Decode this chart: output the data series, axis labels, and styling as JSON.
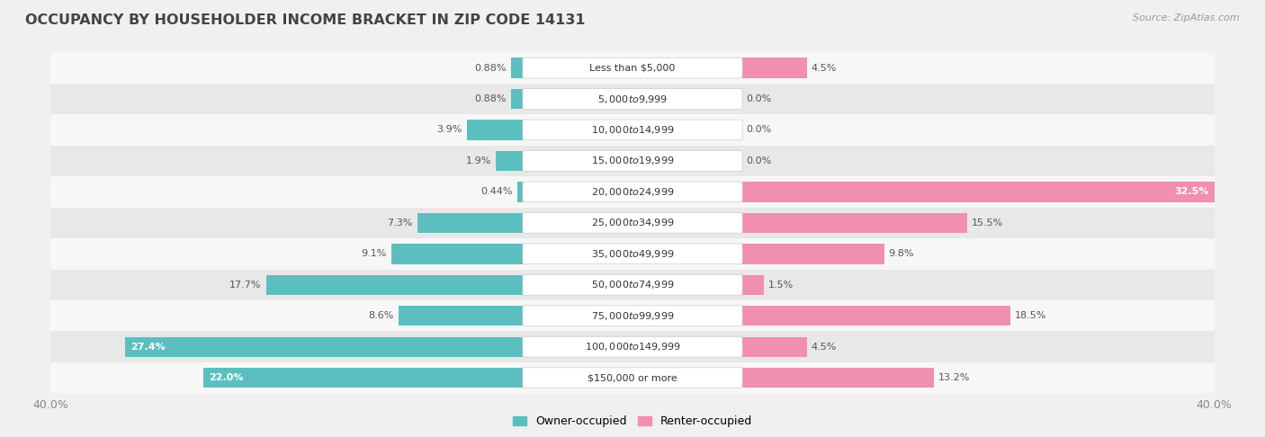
{
  "title": "OCCUPANCY BY HOUSEHOLDER INCOME BRACKET IN ZIP CODE 14131",
  "source": "Source: ZipAtlas.com",
  "categories": [
    "Less than $5,000",
    "$5,000 to $9,999",
    "$10,000 to $14,999",
    "$15,000 to $19,999",
    "$20,000 to $24,999",
    "$25,000 to $34,999",
    "$35,000 to $49,999",
    "$50,000 to $74,999",
    "$75,000 to $99,999",
    "$100,000 to $149,999",
    "$150,000 or more"
  ],
  "owner_values": [
    0.88,
    0.88,
    3.9,
    1.9,
    0.44,
    7.3,
    9.1,
    17.7,
    8.6,
    27.4,
    22.0
  ],
  "renter_values": [
    4.5,
    0.0,
    0.0,
    0.0,
    32.5,
    15.5,
    9.8,
    1.5,
    18.5,
    4.5,
    13.2
  ],
  "owner_color": "#5BBFBF",
  "renter_color": "#F08FB0",
  "owner_label": "Owner-occupied",
  "renter_label": "Renter-occupied",
  "axis_limit": 40.0,
  "bg_color": "#f0f0f0",
  "row_bg_even": "#f7f7f7",
  "row_bg_odd": "#e8e8e8",
  "title_fontsize": 11.5,
  "label_fontsize": 8,
  "category_fontsize": 8,
  "axis_label_fontsize": 9,
  "label_color_outside": "#555555",
  "label_color_inside": "#ffffff"
}
